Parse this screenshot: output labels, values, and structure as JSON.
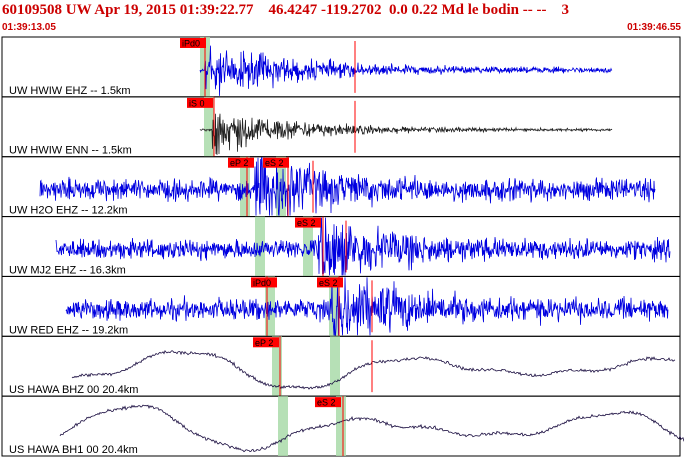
{
  "header": {
    "title": "60109508 UW Apr 19, 2015 01:39:22.77    46.4247 -119.2702  0.0 0.22 Md le bodin -- --    3",
    "start_time": "01:39:13.05",
    "end_time": "01:39:46.55"
  },
  "colors": {
    "header_text": "#cc0000",
    "pick_label_bg": "#ff0000",
    "pick_line": "#ff0000",
    "pick_window": "#a9dba9",
    "trace_blue": "#0000e0",
    "trace_dark": "#222222",
    "trace_purple": "#1a0d40",
    "border": "#000000"
  },
  "panels": [
    {
      "label": "UW HWIW EHZ -- 1.5km",
      "trace_color": "blue",
      "picks": [
        {
          "label": "iPd0"
        }
      ],
      "windows": [
        {
          "t": 13.6
        }
      ]
    },
    {
      "label": "UW HWIW ENN -- 1.5km",
      "trace_color": "dark",
      "picks": [
        {
          "label": "iS 0"
        }
      ],
      "windows": [
        {
          "t": 14.1
        }
      ]
    },
    {
      "label": "UW H2O EHZ -- 12.2km",
      "trace_color": "blue",
      "picks": [
        {
          "label": "eP 2"
        },
        {
          "label": "eS 2"
        }
      ],
      "windows": [
        {
          "t": 16.3
        },
        {
          "t": 18.8
        }
      ]
    },
    {
      "label": "UW MJ2 EHZ -- 16.3km",
      "trace_color": "blue",
      "picks": [
        {
          "label": "eS 2"
        }
      ],
      "windows": [
        {
          "t": 17.3
        },
        {
          "t": 20.4
        }
      ]
    },
    {
      "label": "UW RED EHZ -- 19.2km",
      "trace_color": "blue",
      "picks": [
        {
          "label": "iPd0"
        },
        {
          "label": "eS 2"
        }
      ],
      "windows": [
        {
          "t": 17.9
        },
        {
          "t": 22.0
        }
      ]
    },
    {
      "label": "US HAWA BHZ 00 20.4km",
      "trace_color": "purple",
      "picks": [
        {
          "label": "eP 2"
        }
      ],
      "windows": [
        {
          "t": 18.4
        },
        {
          "t": 22.6
        }
      ]
    },
    {
      "label": "US HAWA BH1 00 20.4km",
      "trace_color": "purple",
      "picks": [
        {
          "label": "eS 2"
        }
      ],
      "windows": [
        {
          "t": 18.9
        },
        {
          "t": 23.0
        }
      ]
    }
  ]
}
